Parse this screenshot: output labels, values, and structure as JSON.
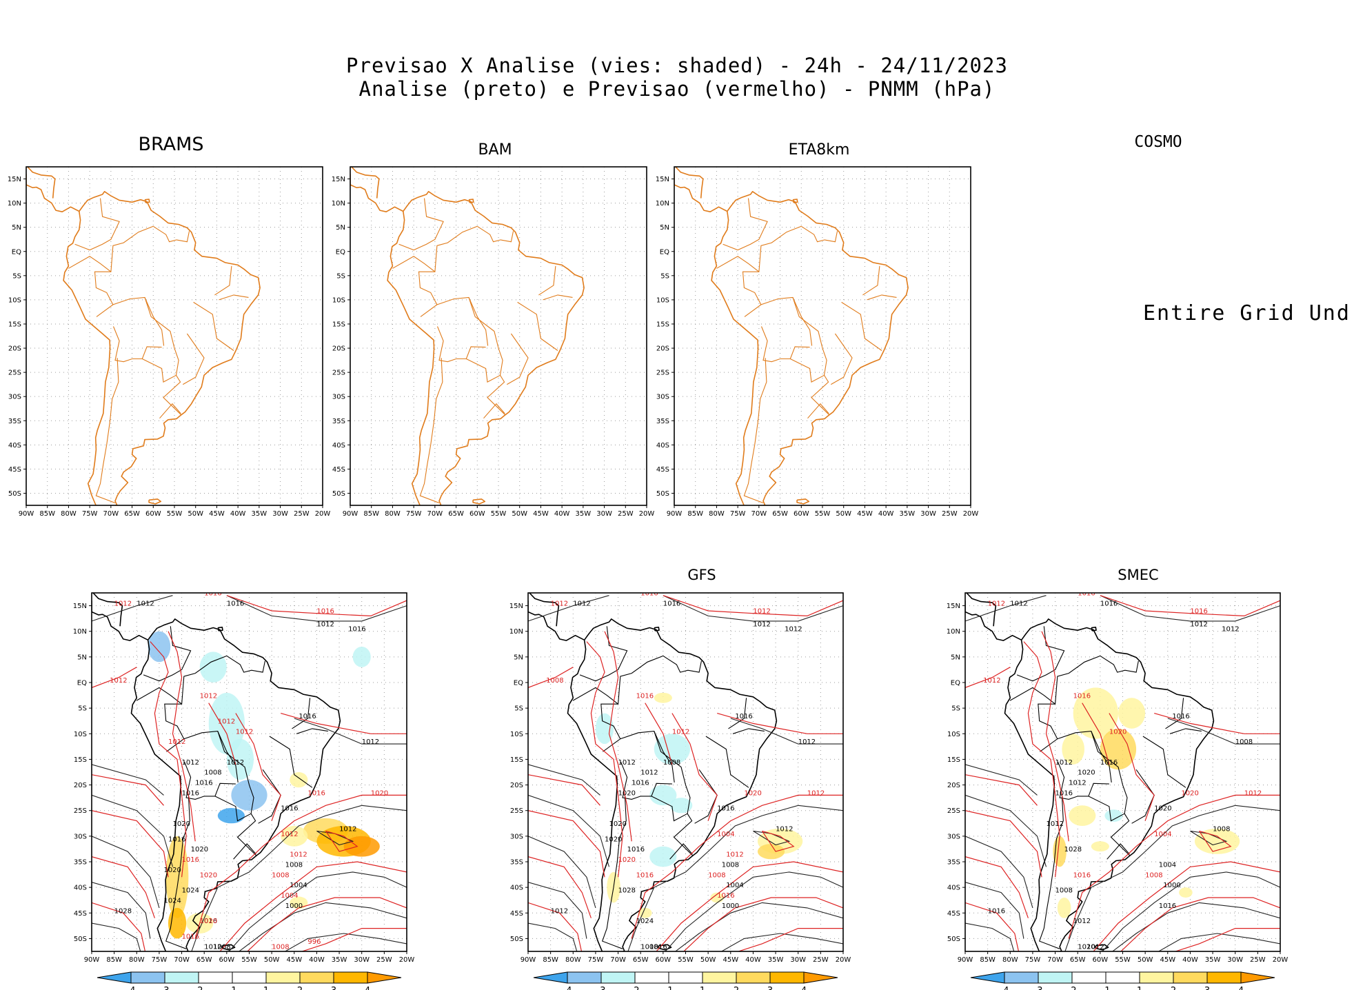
{
  "figure": {
    "title_line1": "Previsao X Analise (vies: shaded) - 24h - 24/11/2023",
    "title_line2": "Analise (preto) e Previsao (vermelho) - PNMM (hPa)"
  },
  "colors": {
    "bias_scale": [
      "#3ea4ec",
      "#8cc3f0",
      "#c0f5f5",
      "#ffffff",
      "#ffffff",
      "#fff5a0",
      "#ffda5e",
      "#ffb700",
      "#ff9a00"
    ],
    "analysis_contour": "#222222",
    "forecast_contour": "#dd2222",
    "map_outline_empty": "#e07b1a"
  },
  "axes": {
    "x_ticks": [
      "90W",
      "85W",
      "80W",
      "75W",
      "70W",
      "65W",
      "60W",
      "55W",
      "50W",
      "45W",
      "40W",
      "35W",
      "30W",
      "25W",
      "20W"
    ],
    "y_ticks": [
      "15N",
      "10N",
      "5N",
      "EQ",
      "5S",
      "10S",
      "15S",
      "20S",
      "25S",
      "30S",
      "35S",
      "40S",
      "45S",
      "50S"
    ],
    "lon_range": [
      -90,
      -20
    ],
    "lat_range": [
      -52.5,
      17.5
    ]
  },
  "colorbar": {
    "labels": [
      "-4",
      "-3",
      "-2",
      "-1",
      "1",
      "2",
      "3",
      "4"
    ]
  },
  "chart_data": [
    {
      "type": "heatmap",
      "name": "BRAMS",
      "title": "BRAMS",
      "status": "empty",
      "grid": "dotted"
    },
    {
      "type": "heatmap",
      "name": "BAM",
      "title": "BAM",
      "status": "empty",
      "grid": "dotted"
    },
    {
      "type": "heatmap",
      "name": "ETA8km",
      "title": "ETA8km",
      "status": "empty",
      "grid": "dotted"
    },
    {
      "type": "heatmap",
      "name": "COSMO",
      "title": "COSMO",
      "status": "undefined",
      "message": "Entire Grid Und"
    },
    {
      "type": "heatmap",
      "name": "panel-bottom-left",
      "title": "",
      "bias_range": [
        -4,
        4
      ],
      "contour_labels_black": [
        "1012",
        "1016",
        "1012",
        "1016",
        "1016",
        "1012",
        "1012",
        "1012",
        "1008",
        "1016",
        "1016",
        "1016",
        "1020",
        "1012",
        "1008",
        "1004",
        "1000",
        "1020",
        "1016",
        "1024",
        "1028",
        "1012",
        "1008",
        "1016",
        "1020",
        "1024"
      ],
      "contour_labels_red": [
        "1012",
        "1016",
        "1016",
        "1012",
        "1012",
        "1012",
        "1016",
        "1020",
        "1012",
        "1008",
        "1020",
        "1016",
        "1004",
        "1012",
        "996",
        "1008",
        "1016",
        "1020",
        "1012",
        "1012"
      ]
    },
    {
      "type": "heatmap",
      "name": "GFS",
      "title": "GFS",
      "bias_range": [
        -4,
        4
      ],
      "contour_labels_black": [
        "1012",
        "1016",
        "1012",
        "1012",
        "1016",
        "1012",
        "1012",
        "1008",
        "1012",
        "1016",
        "1020",
        "1016",
        "1020",
        "1012",
        "1008",
        "1004",
        "1000",
        "1016",
        "1024",
        "1028",
        "1012",
        "1008",
        "1016",
        "1020"
      ],
      "contour_labels_red": [
        "1012",
        "1016",
        "1012",
        "1008",
        "1016",
        "1012",
        "1020",
        "1012",
        "1004",
        "1008",
        "1016",
        "1020",
        "1016",
        "1012"
      ]
    },
    {
      "type": "heatmap",
      "name": "SMEC",
      "title": "SMEC",
      "bias_range": [
        -4,
        4
      ],
      "contour_labels_black": [
        "1012",
        "1016",
        "1012",
        "1012",
        "1016",
        "1008",
        "1012",
        "1016",
        "1020",
        "1012",
        "1016",
        "1020",
        "1012",
        "1008",
        "1004",
        "1000",
        "1016",
        "1028",
        "1012",
        "1008",
        "1016",
        "1020",
        "1012"
      ],
      "contour_labels_red": [
        "1012",
        "1016",
        "1016",
        "1012",
        "1016",
        "1020",
        "1020",
        "1012",
        "1004",
        "1008",
        "1016"
      ]
    }
  ]
}
